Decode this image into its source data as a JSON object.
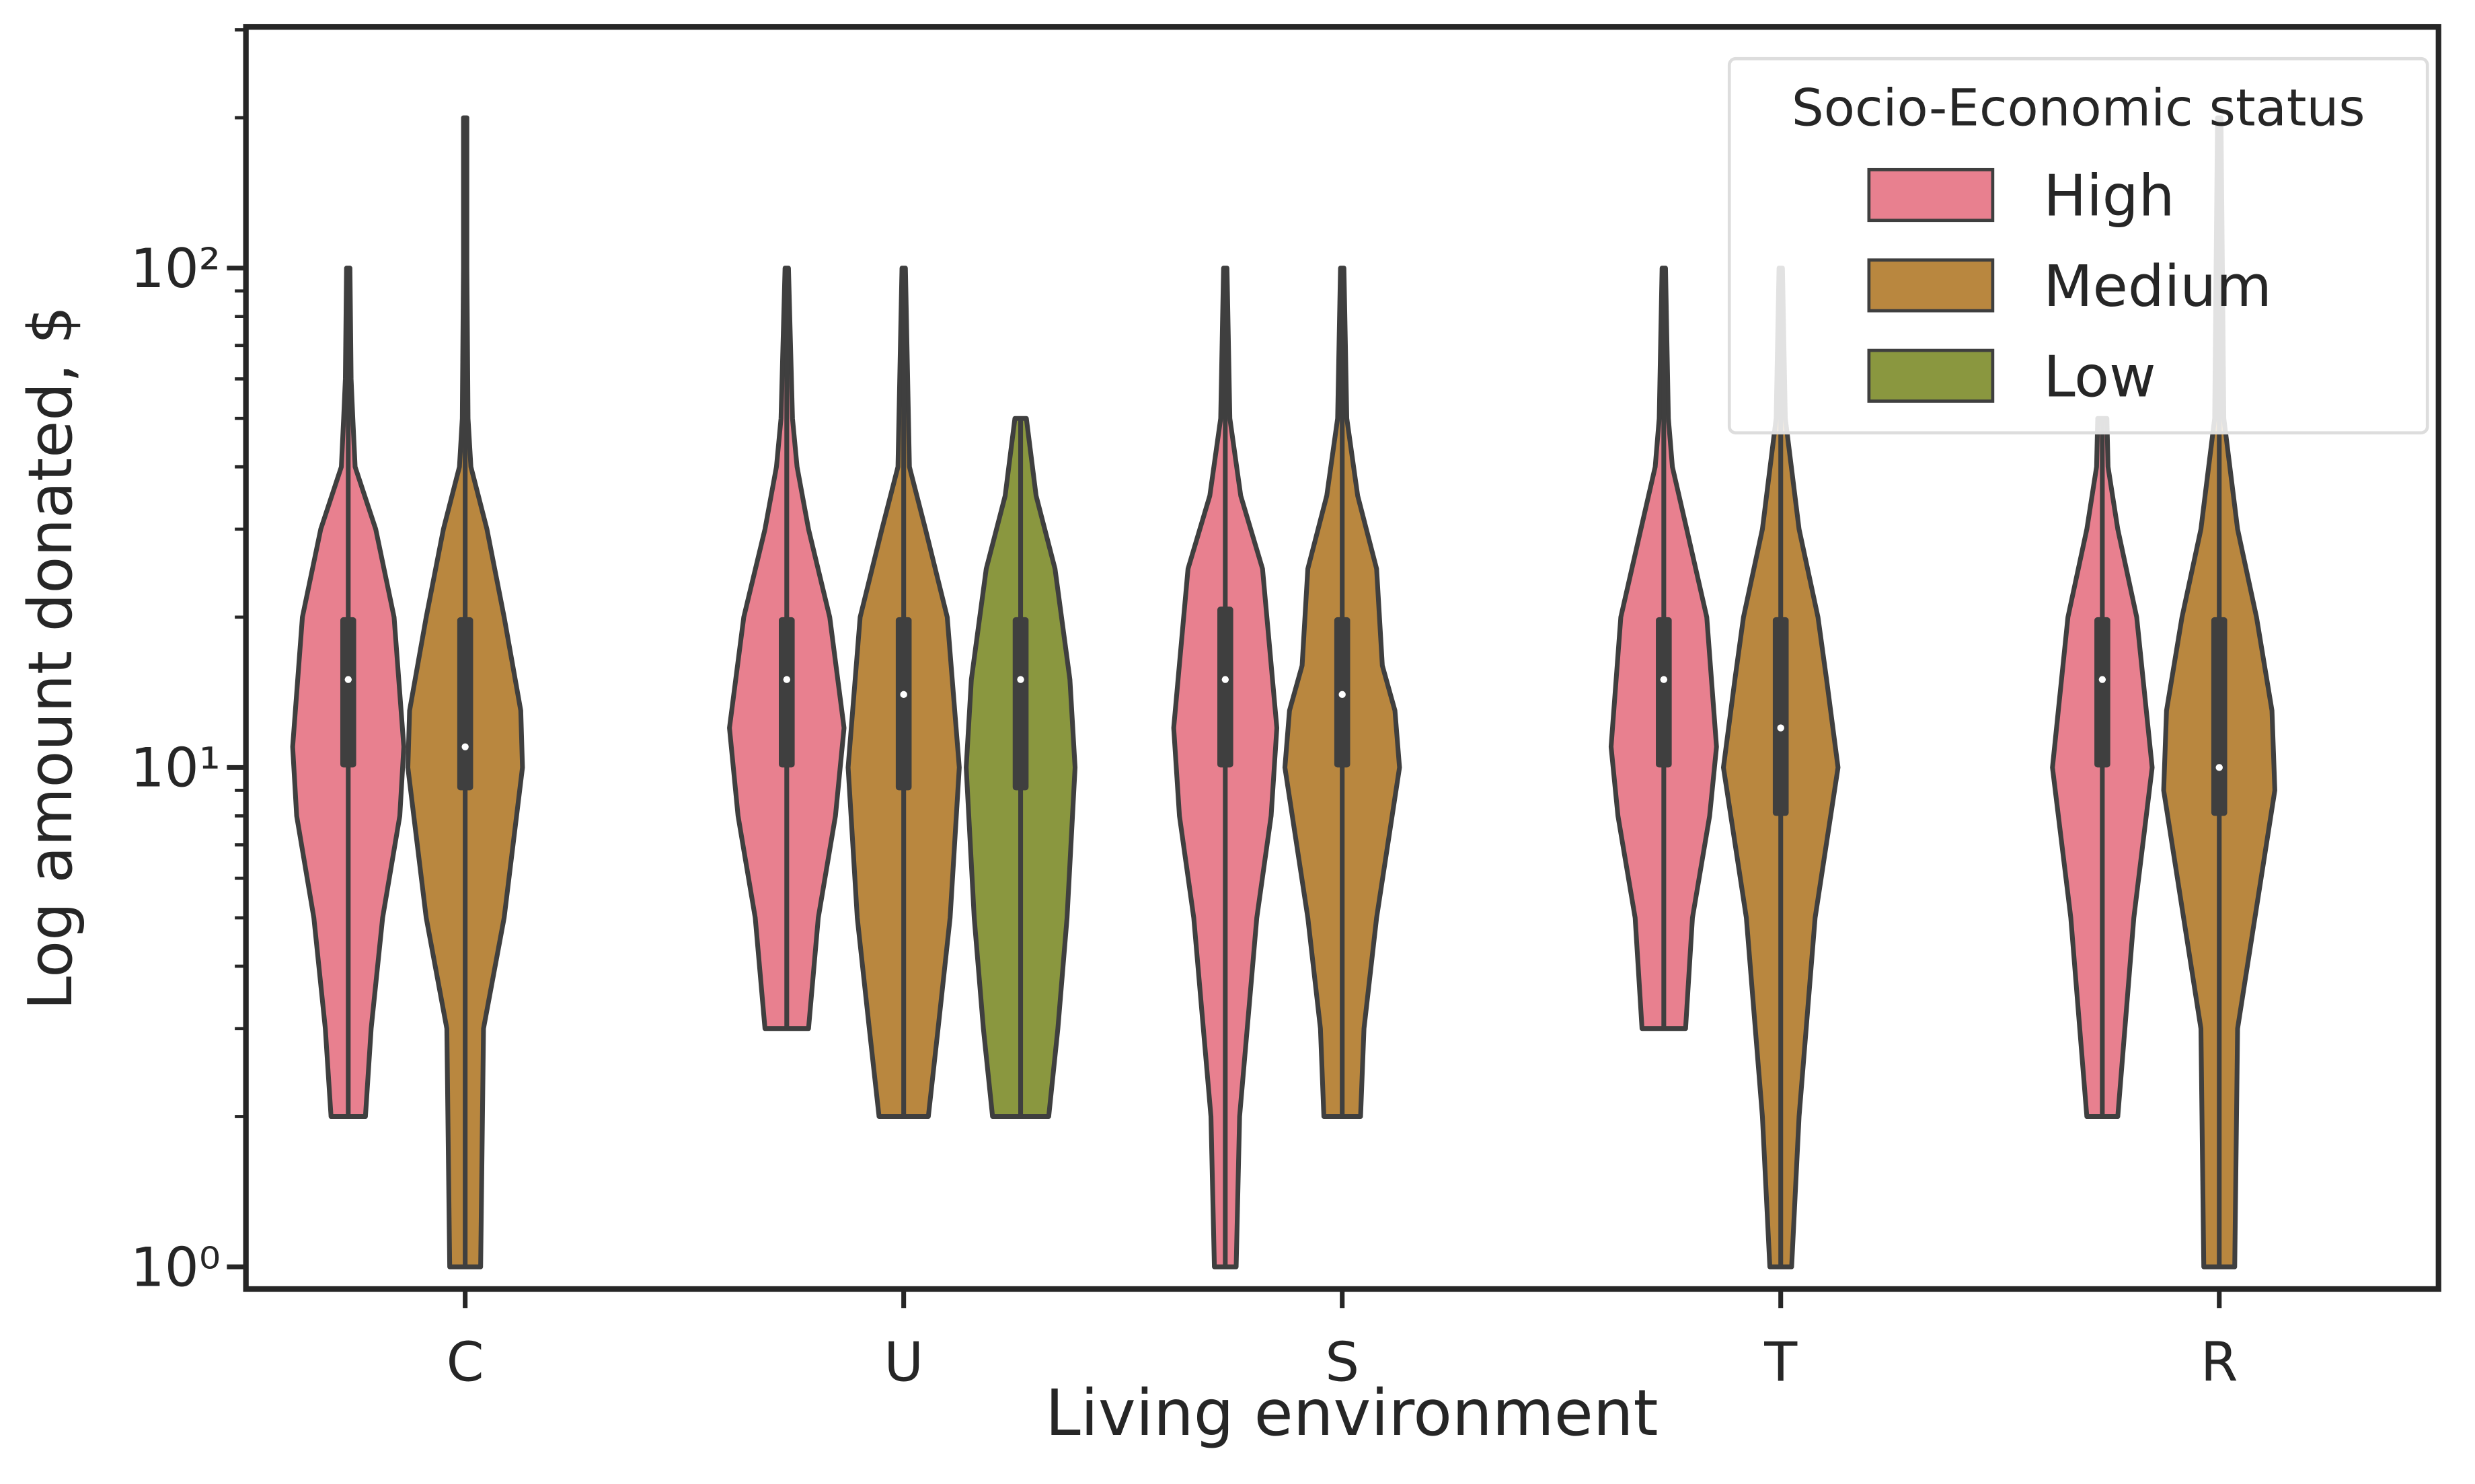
{
  "chart_data": {
    "type": "violin",
    "x_label": "Living environment",
    "y_label": "Log amount donated, $",
    "categories": [
      "C",
      "U",
      "S",
      "T",
      "R"
    ],
    "log_y": true,
    "ylim": [
      0.903,
      304
    ],
    "yticks": [
      {
        "value": 1,
        "label": "10⁰"
      },
      {
        "value": 10,
        "label": "10¹"
      },
      {
        "value": 100,
        "label": "10²"
      }
    ],
    "minor_yticks": [
      2,
      3,
      4,
      5,
      6,
      7,
      8,
      9,
      20,
      30,
      40,
      50,
      60,
      70,
      80,
      90,
      200,
      300
    ],
    "legend_title": "Socio-Economic status",
    "legend_position": "upper right",
    "outline_color": "#3f3f3f",
    "series": [
      {
        "name": "High",
        "color": "#e8808f",
        "values": [
          {
            "min": 2,
            "q1": 10,
            "median": 15,
            "q3": 20,
            "max": 100,
            "kde_y": [
              2,
              3,
              5,
              8,
              11,
              20,
              30,
              40,
              50,
              60,
              100
            ],
            "kde_w": [
              0.3,
              0.4,
              0.6,
              0.9,
              0.97,
              0.8,
              0.48,
              0.12,
              0.08,
              0.05,
              0.03
            ]
          },
          {
            "min": 3,
            "q1": 10,
            "median": 15,
            "q3": 20,
            "max": 100,
            "kde_y": [
              3,
              5,
              8,
              12,
              20,
              30,
              40,
              50,
              100
            ],
            "kde_w": [
              0.38,
              0.55,
              0.85,
              1.0,
              0.75,
              0.38,
              0.18,
              0.1,
              0.03
            ]
          },
          {
            "min": 1,
            "q1": 10,
            "median": 15,
            "q3": 21,
            "max": 100,
            "kde_y": [
              1,
              2,
              5,
              8,
              12,
              25,
              35,
              50,
              100
            ],
            "kde_w": [
              0.19,
              0.25,
              0.55,
              0.8,
              0.9,
              0.65,
              0.27,
              0.08,
              0.03
            ]
          },
          {
            "min": 3,
            "q1": 10,
            "median": 15,
            "q3": 20,
            "max": 100,
            "kde_y": [
              3,
              5,
              8,
              11,
              20,
              30,
              40,
              50,
              100
            ],
            "kde_w": [
              0.38,
              0.5,
              0.8,
              0.92,
              0.75,
              0.4,
              0.15,
              0.08,
              0.03
            ]
          },
          {
            "min": 2,
            "q1": 10,
            "median": 15,
            "q3": 20,
            "max": 50,
            "kde_y": [
              2,
              5,
              10,
              20,
              30,
              40,
              50
            ],
            "kde_w": [
              0.27,
              0.55,
              0.87,
              0.6,
              0.27,
              0.1,
              0.08
            ]
          }
        ]
      },
      {
        "name": "Medium",
        "color": "#b9873f",
        "values": [
          {
            "min": 1,
            "q1": 9,
            "median": 11,
            "q3": 20,
            "max": 200,
            "kde_y": [
              1,
              3,
              5,
              10,
              13,
              20,
              30,
              40,
              50,
              100,
              200
            ],
            "kde_w": [
              0.27,
              0.32,
              0.68,
              1.0,
              0.97,
              0.68,
              0.38,
              0.1,
              0.05,
              0.03,
              0.03
            ]
          },
          {
            "min": 2,
            "q1": 9,
            "median": 14,
            "q3": 20,
            "max": 100,
            "kde_y": [
              2,
              3,
              5,
              10,
              20,
              30,
              40,
              100
            ],
            "kde_w": [
              0.43,
              0.6,
              0.81,
              0.97,
              0.76,
              0.38,
              0.1,
              0.03
            ]
          },
          {
            "min": 2,
            "q1": 10,
            "median": 14,
            "q3": 20,
            "max": 100,
            "kde_y": [
              2,
              3,
              5,
              10,
              13,
              16,
              25,
              35,
              50,
              100
            ],
            "kde_w": [
              0.32,
              0.38,
              0.6,
              1.0,
              0.92,
              0.7,
              0.6,
              0.27,
              0.08,
              0.03
            ]
          },
          {
            "min": 1,
            "q1": 8,
            "median": 12,
            "q3": 20,
            "max": 100,
            "kde_y": [
              1,
              2,
              5,
              10,
              15,
              20,
              30,
              50,
              100
            ],
            "kde_w": [
              0.19,
              0.32,
              0.6,
              1.0,
              0.8,
              0.65,
              0.32,
              0.08,
              0.03
            ]
          },
          {
            "min": 1,
            "q1": 8,
            "median": 10,
            "q3": 20,
            "max": 200,
            "kde_y": [
              1,
              3,
              9,
              13,
              20,
              30,
              50,
              200
            ],
            "kde_w": [
              0.27,
              0.32,
              0.97,
              0.92,
              0.65,
              0.32,
              0.08,
              0.03
            ]
          }
        ]
      },
      {
        "name": "Low",
        "color": "#8a973f",
        "values": [
          null,
          {
            "min": 2,
            "q1": 9,
            "median": 15,
            "q3": 20,
            "max": 50,
            "kde_y": [
              2,
              3,
              5,
              10,
              15,
              25,
              35,
              50
            ],
            "kde_w": [
              0.49,
              0.65,
              0.81,
              0.95,
              0.86,
              0.6,
              0.27,
              0.1
            ]
          },
          null,
          null,
          null
        ]
      }
    ]
  }
}
